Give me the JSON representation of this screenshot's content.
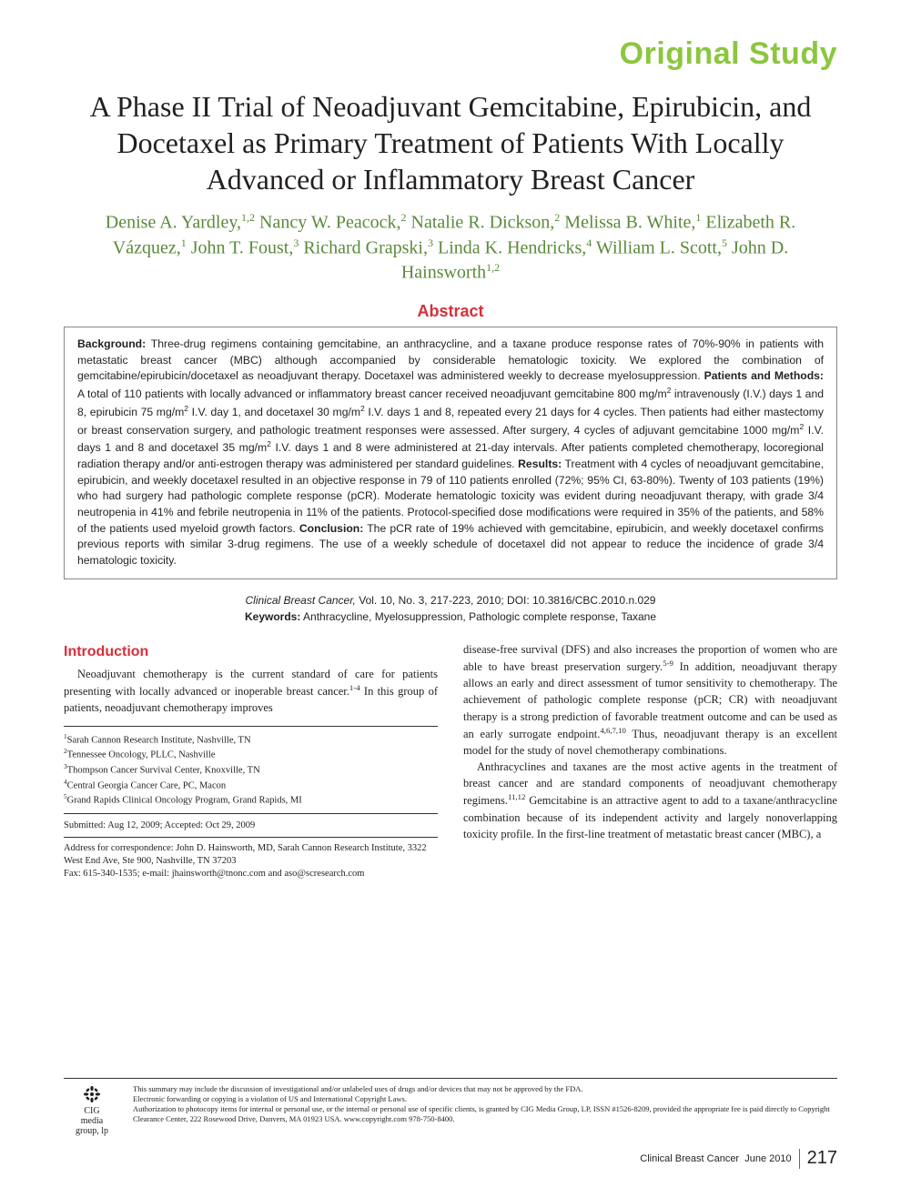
{
  "colors": {
    "accent_green": "#8cc63f",
    "accent_red": "#d62f3a",
    "author_green": "#5a8a3a",
    "text": "#231f20",
    "border": "#888888",
    "background": "#ffffff"
  },
  "typography": {
    "section_label_size": 34,
    "title_size": 32,
    "author_size": 20,
    "abstract_heading_size": 18,
    "abstract_body_size": 12.2,
    "body_size": 12.5,
    "affil_size": 10.5,
    "disclaimer_size": 8.5
  },
  "section_label": "Original Study",
  "title": "A Phase II Trial of Neoadjuvant Gemcitabine, Epirubicin, and Docetaxel as Primary Treatment of Patients With Locally Advanced or Inflammatory Breast Cancer",
  "authors_html": "Denise A. Yardley,<sup>1,2</sup> Nancy W. Peacock,<sup>2</sup> Natalie R. Dickson,<sup>2</sup> Melissa B. White,<sup>1</sup> Elizabeth R. Vázquez,<sup>1</sup> John T. Foust,<sup>3</sup> Richard Grapski,<sup>3</sup> Linda K. Hendricks,<sup>4</sup> William L. Scott,<sup>5</sup> John D. Hainsworth<sup>1,2</sup>",
  "abstract": {
    "heading": "Abstract",
    "body_html": "<b>Background:</b> Three-drug regimens containing gemcitabine, an anthracycline, and a taxane produce response rates of 70%-90% in patients with metastatic breast cancer (MBC) although accompanied by considerable hematologic toxicity. We explored the combination of gemcitabine/epirubicin/docetaxel as neoadjuvant therapy. Docetaxel was administered weekly to decrease myelosuppression. <b>Patients and Methods:</b> A total of 110 patients with locally advanced or inflammatory breast cancer received neoadjuvant gemcitabine 800 mg/m<sup>2</sup> intravenously (I.V.) days 1 and 8, epirubicin 75 mg/m<sup>2</sup> I.V. day 1, and docetaxel 30 mg/m<sup>2</sup> I.V. days 1 and 8, repeated every 21 days for 4 cycles. Then patients had either mastectomy or breast conservation surgery, and pathologic treatment responses were assessed. After surgery, 4 cycles of adjuvant gemcitabine 1000 mg/m<sup>2</sup> I.V. days 1 and 8 and docetaxel 35 mg/m<sup>2</sup> I.V. days 1 and 8 were administered at 21-day intervals. After patients completed chemotherapy, locoregional radiation therapy and/or anti-estrogen therapy was administered per standard guidelines. <b>Results:</b> Treatment with 4 cycles of neoadjuvant gemcitabine, epirubicin, and weekly docetaxel resulted in an objective response in 79 of 110 patients enrolled (72%; 95% CI, 63-80%). Twenty of 103 patients (19%) who had surgery had pathologic complete response (pCR). Moderate hematologic toxicity was evident during neoadjuvant therapy, with grade 3/4 neutropenia in 41% and febrile neutropenia in 11% of the patients. Protocol-specified dose modifications were required in 35% of the patients, and 58% of the patients used myeloid growth factors. <b>Conclusion:</b> The pCR rate of 19% achieved with gemcitabine, epirubicin, and weekly docetaxel confirms previous reports with similar 3-drug regimens. The use of a weekly schedule of docetaxel did not appear to reduce the incidence of grade 3/4 hematologic toxicity."
  },
  "citation": {
    "journal": "Clinical Breast Cancer,",
    "vol_issue": "Vol. 10, No. 3, 217-223, 2010;",
    "doi": "DOI: 10.3816/CBC.2010.n.029",
    "keywords_label": "Keywords:",
    "keywords": "Anthracycline, Myelosuppression, Pathologic complete response, Taxane"
  },
  "introduction": {
    "heading": "Introduction",
    "col1_p1_html": "Neoadjuvant chemotherapy is the current standard of care for patients presenting with locally advanced or inoperable breast cancer.<sup>1-4</sup> In this group of patients, neoadjuvant chemotherapy improves",
    "col2_p1_html": "disease-free survival (DFS) and also increases the proportion of women who are able to have breast preservation surgery.<sup>5-9</sup> In addition, neoadjuvant therapy allows an early and direct assessment of tumor sensitivity to chemotherapy. The achievement of pathologic complete response (pCR; CR) with neoadjuvant therapy is a strong prediction of favorable treatment outcome and can be used as an early surrogate endpoint.<sup>4,6,7,10</sup> Thus, neoadjuvant therapy is an excellent model for the study of novel chemotherapy combinations.",
    "col2_p2_html": "Anthracyclines and taxanes are the most active agents in the treatment of breast cancer and are standard components of neoadjuvant chemotherapy regimens.<sup>11,12</sup> Gemcitabine is an attractive agent to add to a taxane/anthracycline combination because of its independent activity and largely nonoverlapping toxicity profile. In the first-line treatment of metastatic breast cancer (MBC), a"
  },
  "affiliations": [
    "Sarah Cannon Research Institute, Nashville, TN",
    "Tennessee Oncology, PLLC, Nashville",
    "Thompson Cancer Survival Center, Knoxville, TN",
    "Central Georgia Cancer Care, PC, Macon",
    "Grand Rapids Clinical Oncology Program, Grand Rapids, MI"
  ],
  "dates": "Submitted: Aug 12, 2009; Accepted: Oct 29, 2009",
  "correspondence": {
    "line1": "Address for correspondence: John D. Hainsworth, MD, Sarah Cannon Research Institute, 3322 West End Ave, Ste 900, Nashville, TN 37203",
    "line2": "Fax: 615-340-1535; e-mail: jhainsworth@tnonc.com and aso@scresearch.com"
  },
  "publisher_logo": {
    "line1": "CIG",
    "line2": "media",
    "line3": "group, lp"
  },
  "disclaimer": {
    "l1": "This summary may include the discussion of investigational and/or unlabeled uses of drugs and/or devices that may not be approved by the FDA.",
    "l2": "Electronic forwarding or copying is a violation of US and International Copyright Laws.",
    "l3": "Authorization to photocopy items for internal or personal use, or the internal or personal use of specific clients, is granted by CIG Media Group, LP, ISSN #1526-8209, provided the appropriate fee is paid directly to Copyright Clearance Center, 222 Rosewood Drive, Danvers, MA 01923 USA. www.copyright.com 978-750-8400."
  },
  "footer": {
    "journal": "Clinical Breast Cancer",
    "issue_date": "June 2010",
    "page": "217"
  }
}
